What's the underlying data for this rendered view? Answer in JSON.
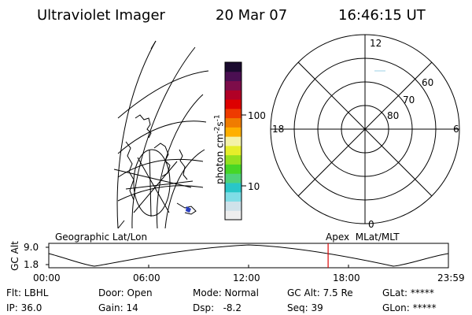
{
  "header": {
    "instrument": "Ultraviolet Imager",
    "date": "20 Mar 07",
    "time": "16:46:15 UT"
  },
  "colorbar": {
    "unit_label": "photon cm",
    "unit_exp1": "-2",
    "unit_s": "s",
    "unit_exp2": "-1",
    "ticks": [
      "100",
      "10"
    ],
    "colors": [
      "#eeeeee",
      "#cfe2ea",
      "#7fdde6",
      "#29c6c8",
      "#4fd27a",
      "#46d626",
      "#94e11f",
      "#e6ee2a",
      "#f4f2a8",
      "#ffb000",
      "#f07c00",
      "#ee3a00",
      "#dd0000",
      "#b10026",
      "#7d0d4a",
      "#4b0f52",
      "#1a0a2e"
    ]
  },
  "geo_map": {
    "title": "Geographic Lat/Lon"
  },
  "polar": {
    "title": "Apex  MLat/MLT",
    "mlt_labels": [
      "12",
      "18",
      "6",
      "0"
    ],
    "mlat_labels": [
      "60",
      "70",
      "80"
    ]
  },
  "timeline": {
    "y_axis_label": "GC Alt",
    "y_ticks": [
      "9.0",
      "1.8"
    ],
    "x_ticks": [
      "00:00",
      "06:00",
      "12:00",
      "18:00",
      "23:59"
    ],
    "current_time_fraction": 0.699
  },
  "footer": {
    "filter": "Flt: LBHL",
    "door": "Door: Open",
    "mode": "Mode: Normal",
    "gc_alt": "GC Alt: 7.5 Re",
    "glat": "GLat: *****",
    "ip": "IP: 36.0",
    "gain": "Gain: 14",
    "dsp": "Dsp:   -8.2",
    "seq": "Seq: 39",
    "glon": "GLon: *****"
  },
  "colors": {
    "marker": "#dd0000",
    "ink": "#000000"
  }
}
